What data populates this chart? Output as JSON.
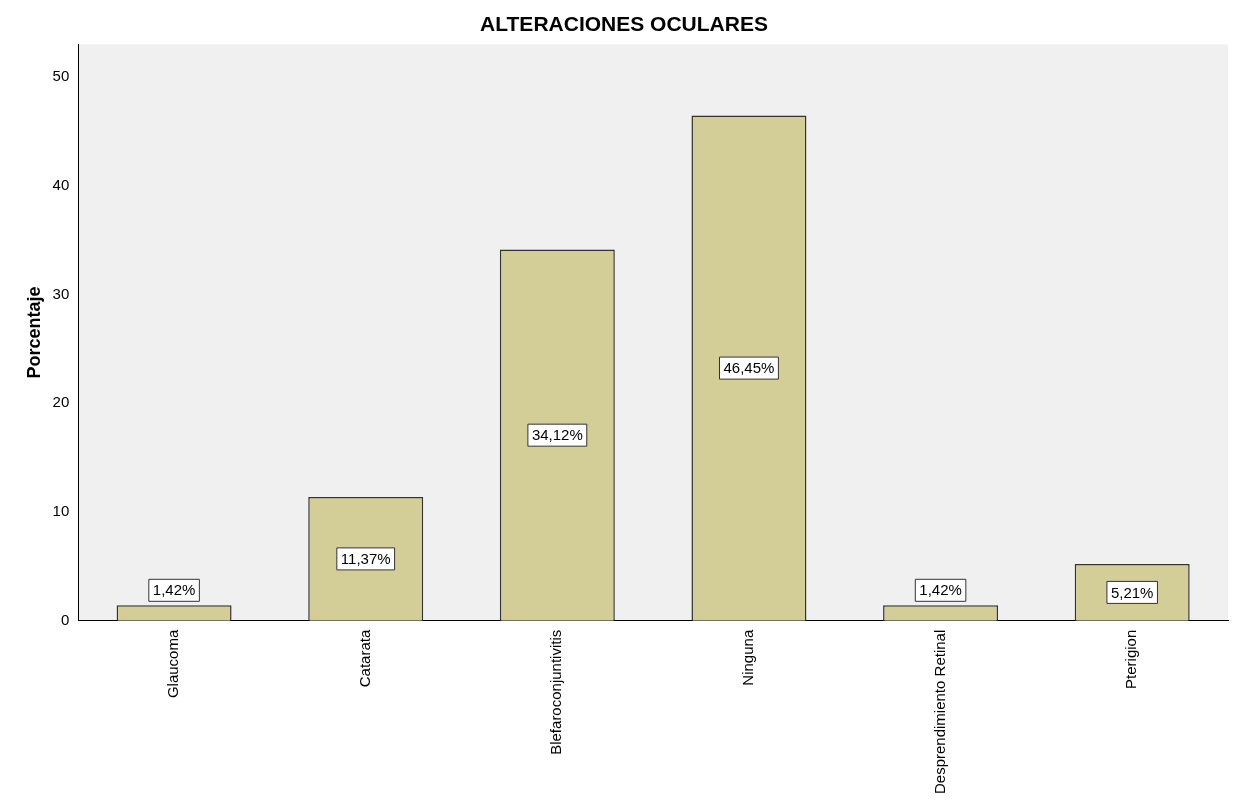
{
  "chart_data": {
    "type": "bar",
    "title": "ALTERACIONES OCULARES",
    "ylabel": "Porcentaje",
    "categories": [
      "Glaucoma",
      "Catarata",
      "Blefaroconjuntivitis",
      "Ninguna",
      "Desprendimiento Retinal",
      "Pterigion"
    ],
    "values": [
      1.42,
      11.37,
      34.12,
      46.45,
      1.42,
      5.21
    ],
    "value_labels": [
      "1,42%",
      "11,37%",
      "34,12%",
      "46,45%",
      "1,42%",
      "5,21%"
    ],
    "color": "#d3ce97",
    "ylim": [
      0,
      53
    ],
    "yticks": [
      0,
      10,
      20,
      30,
      40,
      50
    ],
    "grid": false,
    "legend": false
  }
}
